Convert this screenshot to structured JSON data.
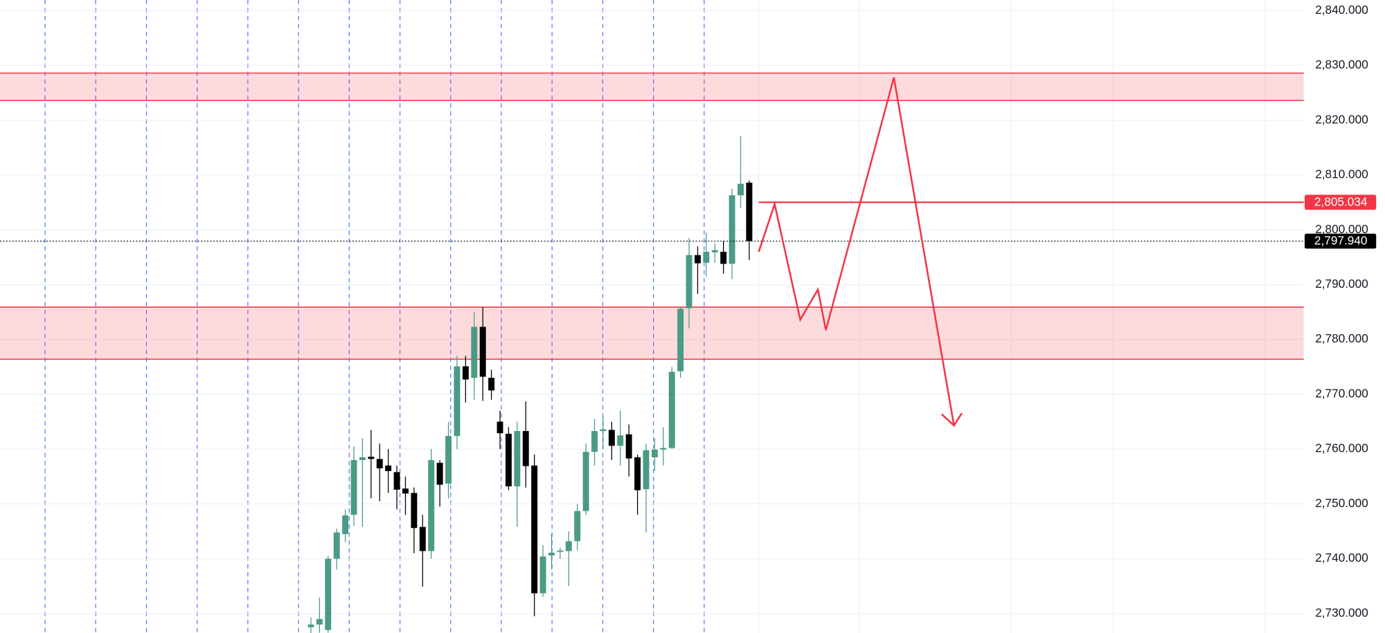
{
  "chart_data": {
    "type": "candlestick",
    "ylim": [
      2726.45,
      2841.93
    ],
    "yticks": [
      {
        "value": 2840,
        "label": "2,840.000"
      },
      {
        "value": 2830,
        "label": "2,830.000"
      },
      {
        "value": 2820,
        "label": "2,820.000"
      },
      {
        "value": 2810,
        "label": "2,810.000"
      },
      {
        "value": 2800,
        "label": "2,800.000"
      },
      {
        "value": 2790,
        "label": "2,790.000"
      },
      {
        "value": 2780,
        "label": "2,780.000"
      },
      {
        "value": 2770,
        "label": "2,770.000"
      },
      {
        "value": 2760,
        "label": "2,760.000"
      },
      {
        "value": 2750,
        "label": "2,750.000"
      },
      {
        "value": 2740,
        "label": "2,740.000"
      },
      {
        "value": 2730,
        "label": "2,730.000"
      }
    ],
    "grid": true,
    "up_color": "#4a9a86",
    "down_color": "#000000",
    "open": [
      2727.5,
      2728,
      2727,
      2740,
      2744.5,
      2748,
      2758,
      2758.6,
      2758.2,
      2757,
      2755.8,
      2752.8,
      2752,
      2745.8,
      2741.4,
      2757.5,
      2753.7,
      2762.4,
      2775.1,
      2773,
      2782.3,
      2773,
      2765,
      2762.8,
      2753.2,
      2763.3,
      2757,
      2733.7,
      2740.6,
      2741.3,
      2741.4,
      2743.2,
      2748.7,
      2759.5,
      2763.3,
      2763.5,
      2760.6,
      2762.7,
      2758.5,
      2752.7,
      2758.5,
      2759.9,
      2760.2,
      2774.2,
      2785.7,
      2795.4,
      2794,
      2795.9,
      2796,
      2793.8,
      2806.3,
      2808.6
    ],
    "high": [
      2729.3,
      2732.9,
      2740.5,
      2745.5,
      2749,
      2760.5,
      2762,
      2763.5,
      2761,
      2760,
      2757,
      2755,
      2753,
      2748,
      2760,
      2758,
      2765,
      2777,
      2777,
      2785,
      2785.9,
      2774.5,
      2767,
      2764,
      2765,
      2768.7,
      2759,
      2742.5,
      2744.5,
      2742,
      2745,
      2750,
      2761,
      2765.5,
      2766,
      2765,
      2767,
      2764.5,
      2759,
      2761,
      2762,
      2764,
      2775,
      2786,
      2798.5,
      2797,
      2799.5,
      2797.5,
      2798,
      2807.5,
      2817.1,
      2809
    ],
    "low": [
      2726,
      2726.5,
      2726.5,
      2738,
      2743,
      2746,
      2745.8,
      2751,
      2750.5,
      2752,
      2749,
      2748,
      2741,
      2734.9,
      2740,
      2749.5,
      2751,
      2760,
      2768.5,
      2769,
      2768.8,
      2769,
      2760,
      2752.5,
      2745.8,
      2753,
      2729.5,
      2733,
      2738,
      2740,
      2735,
      2741.5,
      2748,
      2757,
      2760,
      2758,
      2757,
      2755,
      2748,
      2744.8,
      2756,
      2757,
      2760,
      2773,
      2782,
      2788.3,
      2791.5,
      2794,
      2792,
      2791,
      2804,
      2794.5
    ],
    "close": [
      2728,
      2729,
      2740,
      2744.8,
      2747.9,
      2758,
      2758.5,
      2758.2,
      2756.5,
      2756,
      2752.6,
      2751.9,
      2745.6,
      2741.4,
      2758,
      2753.5,
      2762.4,
      2775.1,
      2772.7,
      2782.3,
      2773.2,
      2770.7,
      2762.9,
      2753.2,
      2763.3,
      2756.9,
      2733.7,
      2740.4,
      2741.1,
      2741.5,
      2743.2,
      2748.7,
      2759.5,
      2763.3,
      2763.6,
      2760.6,
      2762.5,
      2758.3,
      2752.5,
      2759.8,
      2759.9,
      2760.2,
      2774.1,
      2785.6,
      2795.4,
      2793.9,
      2796,
      2796.3,
      2793.8,
      2806.3,
      2808.4,
      2797.94
    ],
    "zones": [
      {
        "low": 2823.6,
        "high": 2828.6
      },
      {
        "low": 2776.4,
        "high": 2785.9
      }
    ],
    "zone_color": "#f23645",
    "price_line": {
      "value": 2805.034,
      "label": "2,805.034"
    },
    "last_price": {
      "value": 2797.94,
      "label": "2,797.940"
    },
    "projection": [
      2796.0,
      2804.7,
      2783.6,
      2789.1,
      2781.7,
      2827.8,
      2764.3
    ]
  }
}
